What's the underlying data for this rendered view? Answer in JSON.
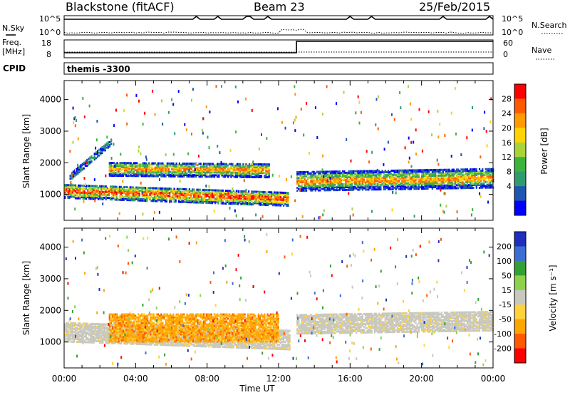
{
  "header": {
    "station": "Blackstone (fitACF)",
    "beam": "Beam 23",
    "date": "25/Feb/2015"
  },
  "summary_panels": {
    "nsky_label": "N.Sky",
    "nsearch_label": "N.Search",
    "nsky_ticks": [
      "10^5",
      "10^0"
    ],
    "freq_label": "Freq.",
    "freq_unit": "[MHz]",
    "freq_ticks": [
      "18",
      "8"
    ],
    "nave_label": "Nave",
    "nave_ticks": [
      "60",
      "0"
    ],
    "cpid_label": "CPID",
    "cpid_value": "themis -3300"
  },
  "x_axis": {
    "label": "Time UT",
    "ticks": [
      "00:00",
      "04:00",
      "08:00",
      "12:00",
      "16:00",
      "20:00",
      "00:00"
    ]
  },
  "chart_data": [
    {
      "type": "heatmap",
      "panel": "power",
      "xlabel": "Time UT",
      "ylabel": "Slant Range [km]",
      "x_range_hours": [
        0,
        24
      ],
      "ylim": [
        180,
        4600
      ],
      "y_ticks": [
        "1000",
        "2000",
        "3000",
        "4000"
      ],
      "colorbar": {
        "label": "Power [dB]",
        "ticks": [
          "28",
          "24",
          "20",
          "16",
          "12",
          "8",
          "4"
        ],
        "colors": [
          "#ff0000",
          "#ff5a00",
          "#ff9a00",
          "#ffd400",
          "#a8d43a",
          "#3cb43c",
          "#2e9c6e",
          "#1e56b4",
          "#0000ff"
        ]
      },
      "echo_bands": [
        {
          "t0": 0.0,
          "t1": 12.5,
          "r_start": 1150,
          "r_end": 900,
          "width": 450,
          "level": "high"
        },
        {
          "t0": 0.3,
          "t1": 2.6,
          "r_start": 1600,
          "r_end": 2700,
          "width": 220,
          "level": "low"
        },
        {
          "t0": 2.5,
          "t1": 11.5,
          "r_start": 1850,
          "r_end": 1800,
          "width": 450,
          "level": "mid"
        },
        {
          "t0": 13.0,
          "t1": 24.0,
          "r_start": 1450,
          "r_end": 1550,
          "width": 600,
          "level": "mid"
        }
      ]
    },
    {
      "type": "heatmap",
      "panel": "velocity",
      "xlabel": "Time UT",
      "ylabel": "Slant Range [km]",
      "x_range_hours": [
        0,
        24
      ],
      "ylim": [
        180,
        4600
      ],
      "y_ticks": [
        "1000",
        "2000",
        "3000",
        "4000"
      ],
      "colorbar": {
        "label": "Velocity [m s⁻¹]",
        "ticks": [
          "200",
          "100",
          "50",
          "15",
          "-15",
          "-50",
          "-100",
          "-200"
        ],
        "colors": [
          "#1e2fbe",
          "#3c6ed2",
          "#32a032",
          "#8cd24b",
          "#c8c8be",
          "#ffd23c",
          "#ffa500",
          "#ff5a00",
          "#ff0000"
        ]
      },
      "echo_bands": [
        {
          "t0": 0.0,
          "t1": 12.6,
          "r_start": 1350,
          "r_end": 1100,
          "width": 600,
          "level": "ground"
        },
        {
          "t0": 2.5,
          "t1": 12.0,
          "r_start": 1500,
          "r_end": 1500,
          "width": 900,
          "level": "orange"
        },
        {
          "t0": 13.0,
          "t1": 24.0,
          "r_start": 1600,
          "r_end": 1700,
          "width": 600,
          "level": "ground"
        }
      ]
    }
  ]
}
